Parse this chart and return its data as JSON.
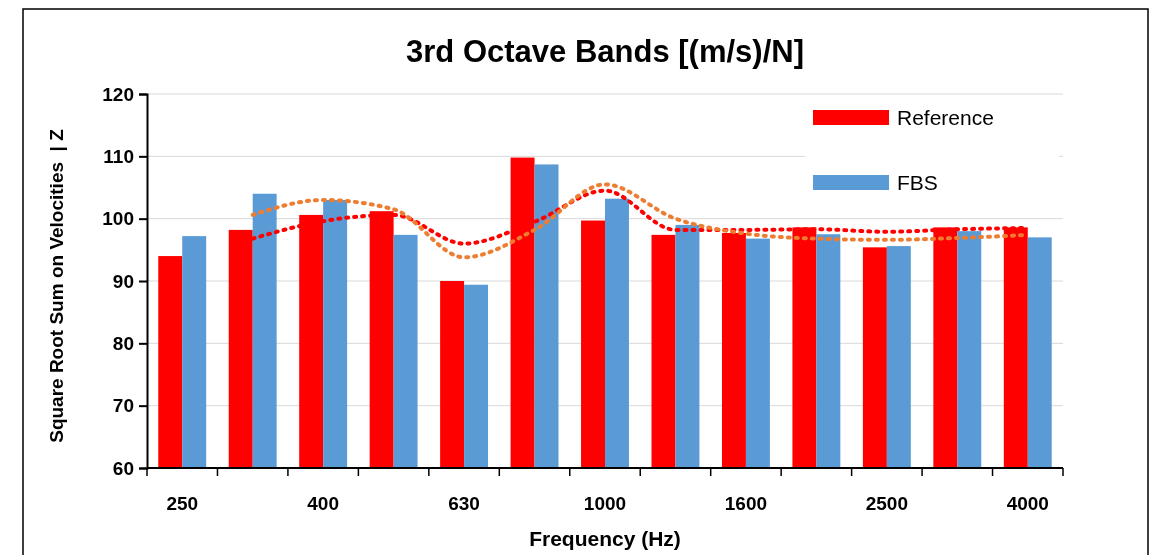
{
  "chart_data": {
    "type": "bar",
    "title": "3rd Octave Bands [(m/s)/N]",
    "xlabel": "Frequency (Hz)",
    "ylabel": "Square Root Sum on Velocities  | Z",
    "categories": [
      "250",
      null,
      "400",
      null,
      "630",
      null,
      "1000",
      null,
      "1600",
      null,
      "2500",
      null,
      "4000"
    ],
    "series": [
      {
        "name": "Reference",
        "color": "#ff0000",
        "values": [
          94.0,
          98.2,
          100.6,
          101.2,
          90.0,
          109.8,
          99.7,
          97.4,
          97.7,
          98.6,
          95.4,
          98.6,
          98.6
        ]
      },
      {
        "name": "FBS",
        "color": "#5b9bd5",
        "values": [
          97.2,
          104.0,
          103.0,
          97.4,
          89.4,
          108.7,
          103.2,
          99.0,
          96.8,
          97.5,
          95.6,
          98.0,
          97.0
        ]
      },
      {
        "type": "line",
        "color": "#ff0000",
        "line_style": "dotted",
        "values": [
          null,
          96.8,
          99.6,
          100.6,
          96.0,
          99.5,
          104.5,
          98.2,
          98.2,
          98.3,
          97.9,
          98.3,
          98.5
        ]
      },
      {
        "type": "line",
        "color": "#ed7d31",
        "line_style": "dotted",
        "values": [
          null,
          100.6,
          103.0,
          101.5,
          93.8,
          98.2,
          105.5,
          100.0,
          97.6,
          96.8,
          96.6,
          96.9,
          97.4
        ]
      }
    ],
    "ylim": [
      60,
      120
    ],
    "yticks": [
      60,
      70,
      80,
      90,
      100,
      110,
      120
    ],
    "grid": "y",
    "legend": "top right"
  }
}
